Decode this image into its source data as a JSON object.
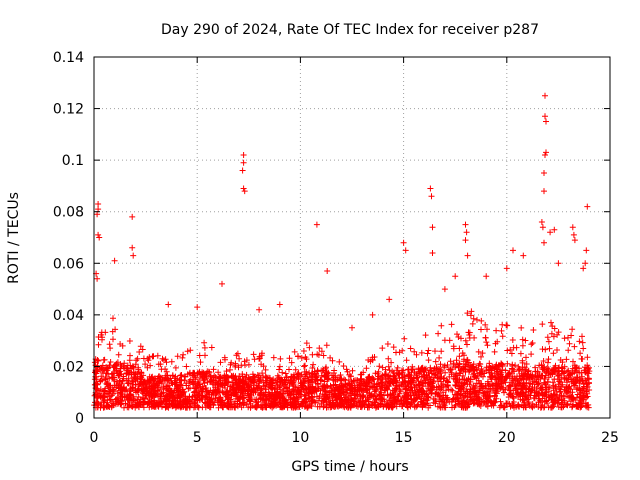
{
  "chart_data": {
    "type": "scatter",
    "title": "Day 290 of 2024, Rate Of TEC Index for receiver p287",
    "xlabel": "GPS time / hours",
    "ylabel": "ROTI / TECUs",
    "xlim": [
      0,
      25
    ],
    "ylim": [
      0,
      0.14
    ],
    "x_ticks": [
      0,
      5,
      10,
      15,
      20,
      25
    ],
    "y_ticks": [
      0,
      0.02,
      0.04,
      0.06,
      0.08,
      0.1,
      0.12,
      0.14
    ],
    "x_tick_labels": [
      "0",
      "5",
      "10",
      "15",
      "20",
      "25"
    ],
    "y_tick_labels": [
      "0",
      "0.02",
      "0.04",
      "0.06",
      "0.08",
      "0.1",
      "0.12",
      "0.14"
    ],
    "grid": true,
    "marker": "+",
    "marker_color": "#ff0000",
    "series": [
      {
        "name": "ROTI",
        "density_envelope": [
          [
            0.0,
            0.03
          ],
          [
            0.5,
            0.036
          ],
          [
            1.0,
            0.04
          ],
          [
            1.5,
            0.04
          ],
          [
            2.0,
            0.034
          ],
          [
            2.5,
            0.026
          ],
          [
            3.0,
            0.024
          ],
          [
            3.5,
            0.026
          ],
          [
            4.0,
            0.024
          ],
          [
            4.5,
            0.028
          ],
          [
            5.0,
            0.028
          ],
          [
            5.5,
            0.03
          ],
          [
            6.0,
            0.024
          ],
          [
            6.5,
            0.024
          ],
          [
            7.0,
            0.026
          ],
          [
            7.5,
            0.024
          ],
          [
            8.0,
            0.026
          ],
          [
            8.5,
            0.024
          ],
          [
            9.0,
            0.024
          ],
          [
            9.5,
            0.024
          ],
          [
            10.0,
            0.028
          ],
          [
            10.5,
            0.03
          ],
          [
            11.0,
            0.032
          ],
          [
            11.5,
            0.026
          ],
          [
            12.0,
            0.022
          ],
          [
            12.5,
            0.02
          ],
          [
            13.0,
            0.022
          ],
          [
            13.5,
            0.026
          ],
          [
            14.0,
            0.028
          ],
          [
            14.5,
            0.03
          ],
          [
            15.0,
            0.032
          ],
          [
            15.5,
            0.032
          ],
          [
            16.0,
            0.034
          ],
          [
            16.5,
            0.036
          ],
          [
            17.0,
            0.036
          ],
          [
            17.5,
            0.04
          ],
          [
            18.0,
            0.044
          ],
          [
            18.5,
            0.04
          ],
          [
            19.0,
            0.036
          ],
          [
            19.5,
            0.036
          ],
          [
            20.0,
            0.038
          ],
          [
            20.5,
            0.036
          ],
          [
            21.0,
            0.034
          ],
          [
            21.5,
            0.036
          ],
          [
            22.0,
            0.04
          ],
          [
            22.5,
            0.036
          ],
          [
            23.0,
            0.034
          ],
          [
            23.5,
            0.036
          ],
          [
            24.0,
            0.034
          ]
        ],
        "baseline_range": [
          0.004,
          0.012
        ],
        "notable_points": [
          {
            "x": 0.2,
            "y": 0.083
          },
          {
            "x": 0.2,
            "y": 0.081
          },
          {
            "x": 0.15,
            "y": 0.079
          },
          {
            "x": 0.2,
            "y": 0.071
          },
          {
            "x": 0.25,
            "y": 0.07
          },
          {
            "x": 0.1,
            "y": 0.056
          },
          {
            "x": 0.15,
            "y": 0.054
          },
          {
            "x": 1.85,
            "y": 0.078
          },
          {
            "x": 1.85,
            "y": 0.066
          },
          {
            "x": 1.9,
            "y": 0.063
          },
          {
            "x": 1.0,
            "y": 0.061
          },
          {
            "x": 7.25,
            "y": 0.102
          },
          {
            "x": 7.25,
            "y": 0.099
          },
          {
            "x": 7.2,
            "y": 0.096
          },
          {
            "x": 7.25,
            "y": 0.089
          },
          {
            "x": 7.3,
            "y": 0.088
          },
          {
            "x": 10.8,
            "y": 0.075
          },
          {
            "x": 6.2,
            "y": 0.052
          },
          {
            "x": 11.3,
            "y": 0.057
          },
          {
            "x": 15.0,
            "y": 0.068
          },
          {
            "x": 15.1,
            "y": 0.065
          },
          {
            "x": 16.3,
            "y": 0.089
          },
          {
            "x": 16.35,
            "y": 0.086
          },
          {
            "x": 16.4,
            "y": 0.074
          },
          {
            "x": 16.4,
            "y": 0.064
          },
          {
            "x": 18.0,
            "y": 0.075
          },
          {
            "x": 18.05,
            "y": 0.072
          },
          {
            "x": 18.0,
            "y": 0.069
          },
          {
            "x": 18.1,
            "y": 0.063
          },
          {
            "x": 20.3,
            "y": 0.065
          },
          {
            "x": 20.8,
            "y": 0.063
          },
          {
            "x": 21.85,
            "y": 0.125
          },
          {
            "x": 21.85,
            "y": 0.117
          },
          {
            "x": 21.9,
            "y": 0.115
          },
          {
            "x": 21.9,
            "y": 0.103
          },
          {
            "x": 21.85,
            "y": 0.102
          },
          {
            "x": 21.8,
            "y": 0.095
          },
          {
            "x": 21.8,
            "y": 0.088
          },
          {
            "x": 21.7,
            "y": 0.076
          },
          {
            "x": 21.75,
            "y": 0.074
          },
          {
            "x": 22.1,
            "y": 0.072
          },
          {
            "x": 22.3,
            "y": 0.073
          },
          {
            "x": 21.8,
            "y": 0.068
          },
          {
            "x": 23.2,
            "y": 0.074
          },
          {
            "x": 23.25,
            "y": 0.071
          },
          {
            "x": 23.3,
            "y": 0.069
          },
          {
            "x": 23.9,
            "y": 0.082
          },
          {
            "x": 23.85,
            "y": 0.065
          },
          {
            "x": 23.8,
            "y": 0.06
          },
          {
            "x": 23.7,
            "y": 0.058
          },
          {
            "x": 9.0,
            "y": 0.044
          },
          {
            "x": 12.5,
            "y": 0.035
          },
          {
            "x": 13.5,
            "y": 0.04
          },
          {
            "x": 14.3,
            "y": 0.046
          },
          {
            "x": 17.0,
            "y": 0.05
          },
          {
            "x": 17.5,
            "y": 0.055
          },
          {
            "x": 19.0,
            "y": 0.055
          },
          {
            "x": 20.0,
            "y": 0.058
          },
          {
            "x": 22.5,
            "y": 0.06
          },
          {
            "x": 3.6,
            "y": 0.044
          },
          {
            "x": 5.0,
            "y": 0.043
          },
          {
            "x": 8.0,
            "y": 0.042
          }
        ]
      }
    ]
  }
}
